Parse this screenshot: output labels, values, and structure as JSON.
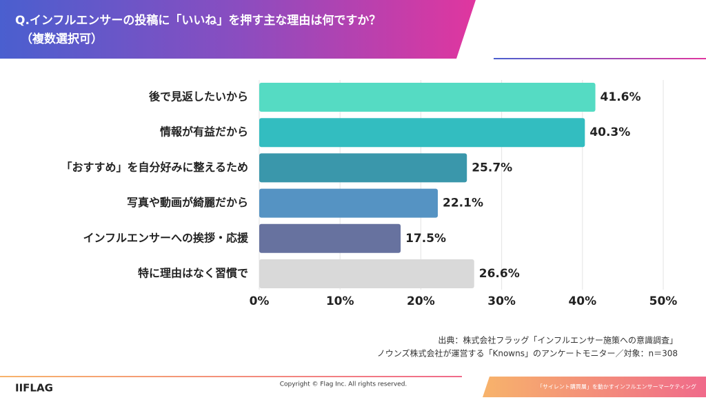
{
  "chart_data": {
    "type": "bar",
    "orientation": "horizontal",
    "title": "Q.インフルエンサーの投稿に「いいね」を押す主な理由は何ですか？",
    "subtitle": "（複数選択可）",
    "categories": [
      "後で見返したいから",
      "情報が有益だから",
      "「おすすめ」を自分好みに整えるため",
      "写真や動画が綺麗だから",
      "インフルエンサーへの挨拶・応援",
      "特に理由はなく習慣で"
    ],
    "values": [
      41.6,
      40.3,
      25.7,
      22.1,
      17.5,
      26.6
    ],
    "value_labels": [
      "41.6%",
      "40.3%",
      "25.7%",
      "22.1%",
      "17.5%",
      "26.6%"
    ],
    "colors": [
      "#55dbc3",
      "#33bdc0",
      "#3a97ab",
      "#5593c3",
      "#67729f",
      "#d9d9d9"
    ],
    "xlim": [
      0,
      50
    ],
    "xticks": [
      {
        "value": 0,
        "label": "0%"
      },
      {
        "value": 10,
        "label": "10%"
      },
      {
        "value": 20,
        "label": "20%"
      },
      {
        "value": 30,
        "label": "30%"
      },
      {
        "value": 40,
        "label": "40%"
      },
      {
        "value": 50,
        "label": "50%"
      }
    ],
    "grid": true
  },
  "source": [
    "出典：株式会社フラッグ「インフルエンサー施策への意識調査」",
    "ノウンズ株式会社が運営する「Knowns」のアンケートモニター／対象：n＝308"
  ],
  "footer": {
    "logo": "IIFLAG",
    "copyright": "Copyright © Flag Inc. All rights reserved.",
    "tagline": "「サイレント購買層」を動かすインフルエンサーマーケティング"
  }
}
